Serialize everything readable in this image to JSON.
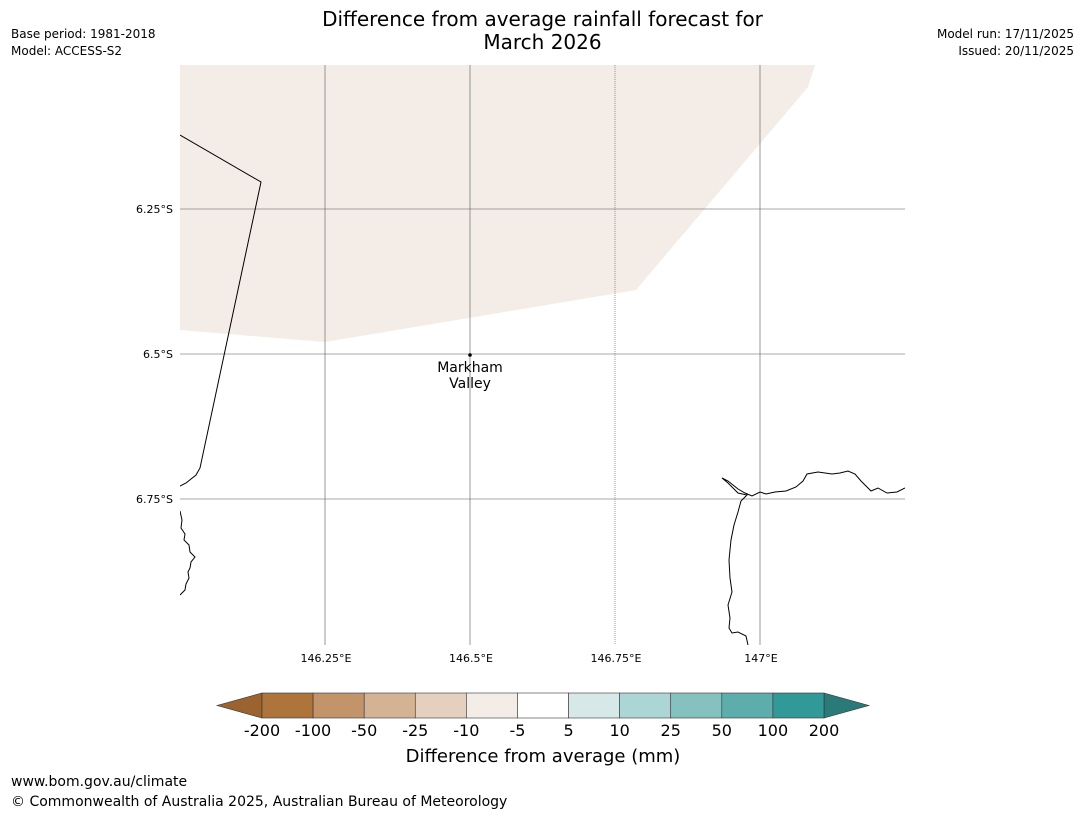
{
  "header": {
    "title_line1": "Difference from average rainfall forecast for",
    "title_line2": "March 2026",
    "base_period": "Base period: 1981-2018",
    "model": "Model: ACCESS-S2",
    "model_run": "Model run: 17/11/2025",
    "issued": "Issued: 20/11/2025"
  },
  "map": {
    "latitude_labels": [
      "6.25°S",
      "6.5°S",
      "6.75°S"
    ],
    "longitude_labels": [
      "146.25°E",
      "146.5°E",
      "146.75°E",
      "147°E"
    ],
    "place": {
      "name_line1": "Markham",
      "name_line2": "Valley"
    },
    "shaded_category": "-10 to -5",
    "colors": {
      "land_shade": "#f4ede7",
      "gridline": "#555555",
      "coastline": "#000000"
    }
  },
  "colorbar": {
    "title": "Difference from average (mm)",
    "tick_labels": [
      "-200",
      "-100",
      "-50",
      "-25",
      "-10",
      "-5",
      "5",
      "10",
      "25",
      "50",
      "100",
      "200"
    ],
    "bins": [
      {
        "range": "< -200",
        "color": "#9a6330"
      },
      {
        "range": "-200 to -100",
        "color": "#ad743c"
      },
      {
        "range": "-100 to -50",
        "color": "#c3946a"
      },
      {
        "range": "-50 to -25",
        "color": "#d4b394"
      },
      {
        "range": "-25 to -10",
        "color": "#e5d0bf"
      },
      {
        "range": "-10 to -5",
        "color": "#f4ede7"
      },
      {
        "range": "-5 to 5",
        "color": "#ffffff"
      },
      {
        "range": "5 to 10",
        "color": "#d7e8e8"
      },
      {
        "range": "10 to 25",
        "color": "#acd5d5"
      },
      {
        "range": "25 to 50",
        "color": "#84c1bf"
      },
      {
        "range": "50 to 100",
        "color": "#5dadac"
      },
      {
        "range": "100 to 200",
        "color": "#329999"
      },
      {
        "range": "> 200",
        "color": "#2a7a7a"
      }
    ]
  },
  "footer": {
    "url": "www.bom.gov.au/climate",
    "copyright": "© Commonwealth of Australia 2025, Australian Bureau of Meteorology"
  }
}
